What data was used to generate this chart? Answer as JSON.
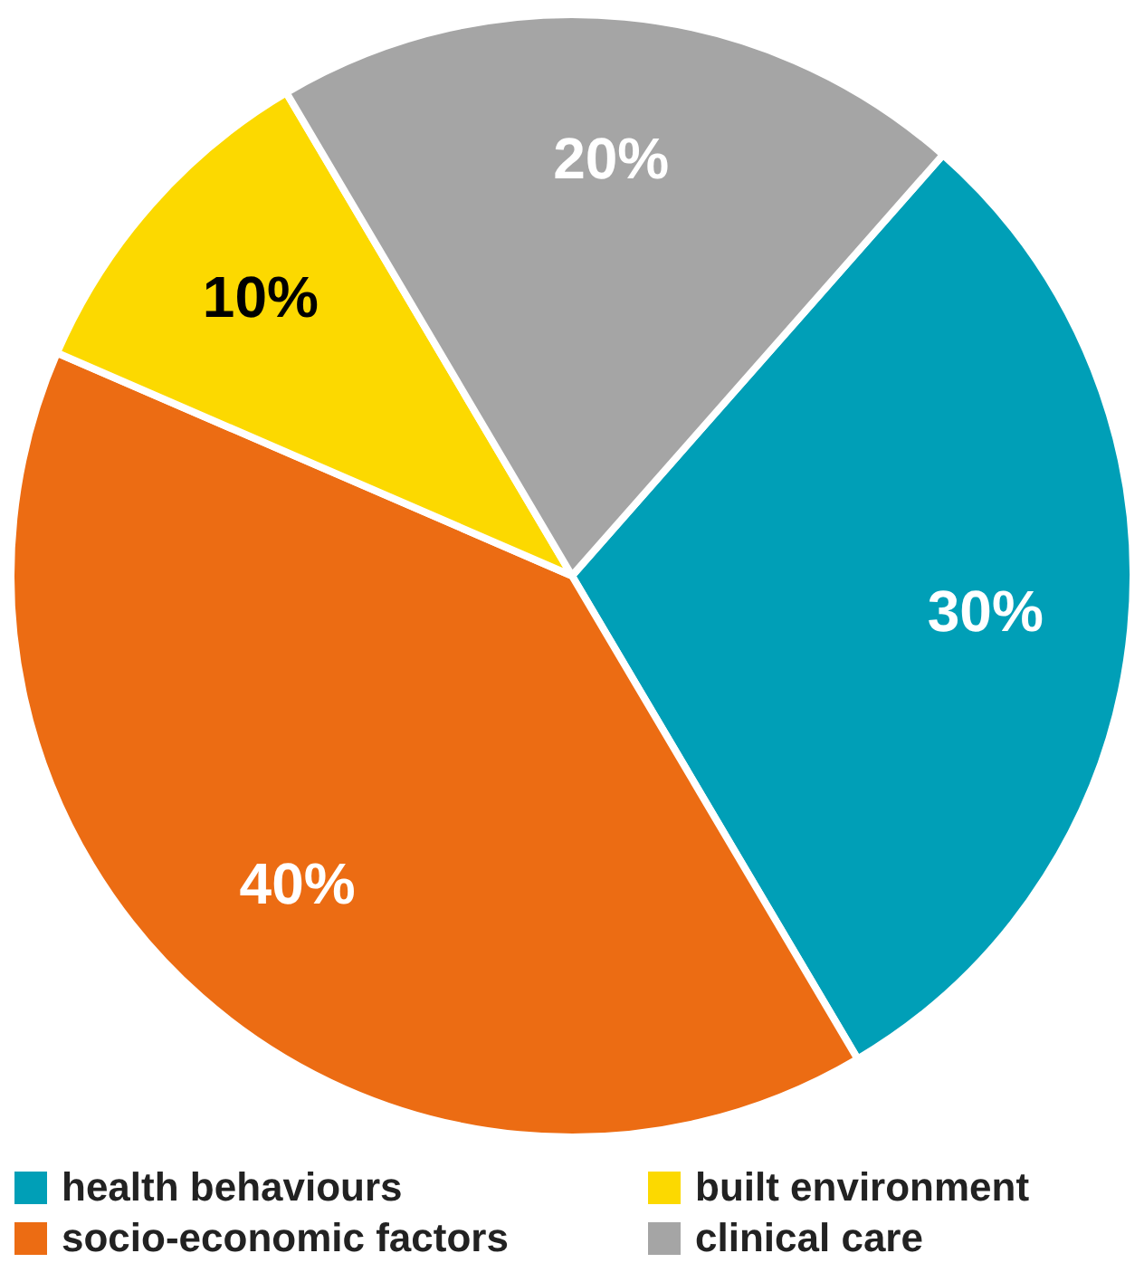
{
  "chart_data": {
    "type": "pie",
    "categories": [
      "health behaviours",
      "socio-economic factors",
      "built environment",
      "clinical care"
    ],
    "values": [
      30,
      40,
      10,
      20
    ],
    "colors": [
      "#009fb7",
      "#ec6c13",
      "#fcd900",
      "#a5a5a5"
    ],
    "value_labels": [
      "30%",
      "40%",
      "10%",
      "20%"
    ],
    "legend": "bottom"
  }
}
